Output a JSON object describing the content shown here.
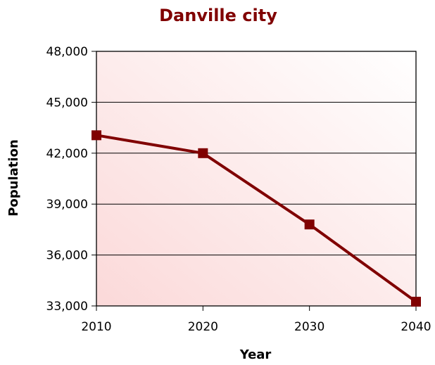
{
  "chart_data": {
    "type": "line",
    "title": "Danville city",
    "xlabel": "Year",
    "ylabel": "Population",
    "x": [
      2010,
      2020,
      2030,
      2040
    ],
    "series": [
      {
        "values": [
          43055,
          42000,
          37800,
          33250
        ]
      }
    ],
    "ylim": [
      33000,
      48000
    ],
    "yticks": [
      33000,
      36000,
      39000,
      42000,
      45000,
      48000
    ],
    "ytick_labels": [
      "33,000",
      "36,000",
      "39,000",
      "42,000",
      "45,000",
      "48,000"
    ],
    "xtick_labels": [
      "2010",
      "2020",
      "2030",
      "2040"
    ],
    "grid": true,
    "marker": "square",
    "colors": {
      "series": "#800000",
      "title": "#800000",
      "plot_bg_start": "#fbd9d9",
      "plot_bg_end": "#ffffff"
    }
  }
}
